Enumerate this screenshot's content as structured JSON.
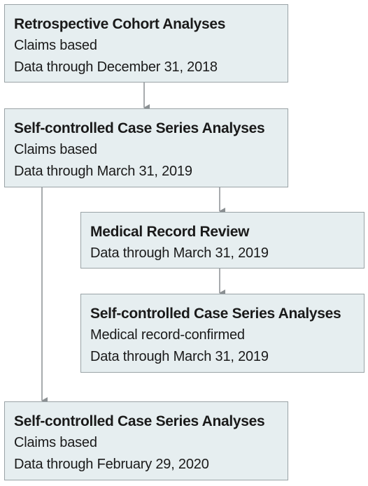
{
  "boxes": [
    {
      "title": "Retrospective Cohort Analyses",
      "lines": [
        "Claims based",
        "Data through December 31, 2018"
      ]
    },
    {
      "title": "Self-controlled Case Series Analyses",
      "lines": [
        "Claims based",
        "Data through March 31, 2019"
      ]
    },
    {
      "title": "Medical Record Review",
      "lines": [
        "Data through March 31, 2019"
      ]
    },
    {
      "title": "Self-controlled Case Series Analyses",
      "lines": [
        "Medical record-confirmed",
        "Data through March 31, 2019"
      ]
    },
    {
      "title": "Self-controlled Case Series Analyses",
      "lines": [
        "Claims based",
        "Data through February 29, 2020"
      ]
    }
  ],
  "colors": {
    "box_fill": "#e6eef0",
    "box_border": "#9aa3a6",
    "arrow": "#8a8f92"
  }
}
